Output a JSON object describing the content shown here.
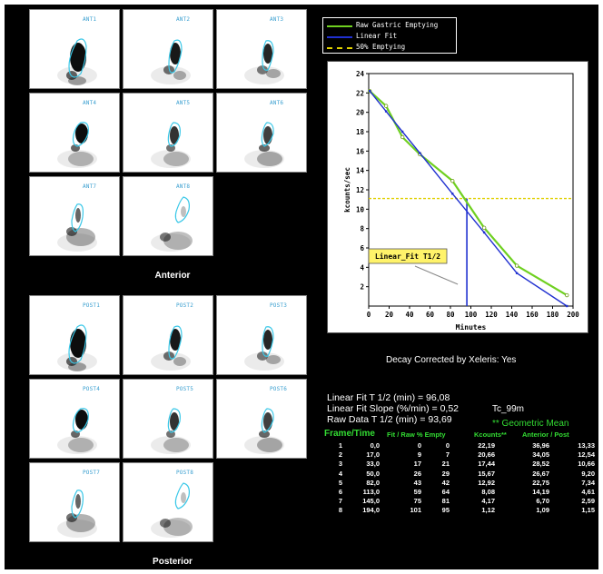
{
  "anterior": {
    "caption": "Anterior",
    "frames": [
      "ANT1",
      "ANT2",
      "ANT3",
      "ANT4",
      "ANT5",
      "ANT6",
      "ANT7",
      "ANT8"
    ]
  },
  "posterior": {
    "caption": "Posterior",
    "frames": [
      "POST1",
      "POST2",
      "POST3",
      "POST4",
      "POST5",
      "POST6",
      "POST7",
      "POST8"
    ]
  },
  "legend": {
    "raw": "Raw Gastric Emptying",
    "fit": "Linear Fit",
    "half": "50% Emptying"
  },
  "colors": {
    "raw": "#6fd020",
    "fit": "#2030d0",
    "half": "#e0d000",
    "roi": "#3ac8e8",
    "annotation_bg": "#fff36a"
  },
  "chart_data": {
    "type": "line",
    "xlabel": "Minutes",
    "ylabel": "kcounts/sec",
    "xlim": [
      0,
      200
    ],
    "ylim": [
      0,
      24
    ],
    "x_ticks": [
      0,
      20,
      40,
      60,
      80,
      100,
      120,
      140,
      160,
      180,
      200
    ],
    "y_ticks": [
      2,
      4,
      6,
      8,
      10,
      12,
      14,
      16,
      18,
      20,
      22,
      24
    ],
    "series": [
      {
        "name": "Raw Gastric Emptying",
        "x": [
          1,
          17,
          33,
          50,
          82,
          113,
          145,
          194
        ],
        "y": [
          22.19,
          20.66,
          17.44,
          15.67,
          12.92,
          8.08,
          4.17,
          1.12
        ]
      },
      {
        "name": "Linear Fit",
        "x": [
          1,
          17,
          33,
          50,
          82,
          113,
          145,
          194
        ],
        "y": [
          22.2,
          20.1,
          18.0,
          15.8,
          11.6,
          7.6,
          3.4,
          0
        ]
      }
    ],
    "half_emptying_y": 11.1,
    "t_half_x": 96.08,
    "annotation": "Linear_Fit T1/2"
  },
  "decay": "Decay Corrected by Xeleris: Yes",
  "stats": {
    "linear_fit_t_half": "Linear Fit T 1/2 (min) = 96,08",
    "linear_fit_slope": "Linear Fit Slope (%/min) = 0,52",
    "raw_data_t_half": "Raw Data T 1/2 (min) = 93,69",
    "isotope": "Tc_99m"
  },
  "table": {
    "geo_title": "** Geometric Mean",
    "headers": {
      "frame_time": "Frame/Time",
      "fit_raw": "Fit / Raw % Empty",
      "kcounts": "Kcounts**",
      "ant_post": "Anterior / Post"
    },
    "rows": [
      {
        "frame": "1",
        "time": "0,0",
        "fit": "0",
        "raw": "0",
        "kcounts": "22,19",
        "ant": "36,96",
        "post": "13,33"
      },
      {
        "frame": "2",
        "time": "17,0",
        "fit": "9",
        "raw": "7",
        "kcounts": "20,66",
        "ant": "34,05",
        "post": "12,54"
      },
      {
        "frame": "3",
        "time": "33,0",
        "fit": "17",
        "raw": "21",
        "kcounts": "17,44",
        "ant": "28,52",
        "post": "10,66"
      },
      {
        "frame": "4",
        "time": "50,0",
        "fit": "26",
        "raw": "29",
        "kcounts": "15,67",
        "ant": "26,67",
        "post": "9,20"
      },
      {
        "frame": "5",
        "time": "82,0",
        "fit": "43",
        "raw": "42",
        "kcounts": "12,92",
        "ant": "22,75",
        "post": "7,34"
      },
      {
        "frame": "6",
        "time": "113,0",
        "fit": "59",
        "raw": "64",
        "kcounts": "8,08",
        "ant": "14,19",
        "post": "4,61"
      },
      {
        "frame": "7",
        "time": "145,0",
        "fit": "75",
        "raw": "81",
        "kcounts": "4,17",
        "ant": "6,70",
        "post": "2,59"
      },
      {
        "frame": "8",
        "time": "194,0",
        "fit": "101",
        "raw": "95",
        "kcounts": "1,12",
        "ant": "1,09",
        "post": "1,15"
      }
    ]
  }
}
